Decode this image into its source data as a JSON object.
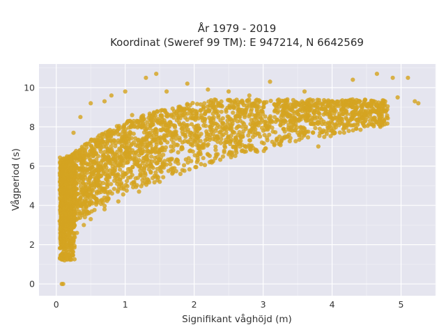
{
  "chart_data": {
    "type": "scatter",
    "title_lines": [
      "År 1979 - 2019",
      "Koordinat (Sweref 99 TM): E 947214, N 6642569"
    ],
    "xlabel": "Signifikant våghöjd (m)",
    "ylabel": "Vågperiod (s)",
    "xlim": [
      -0.25,
      5.5
    ],
    "ylim": [
      -0.6,
      11.2
    ],
    "x_ticks": [
      0,
      1,
      2,
      3,
      4,
      5
    ],
    "x_tick_labels": [
      "0",
      "1",
      "2",
      "3",
      "4",
      "5"
    ],
    "y_ticks": [
      0,
      2,
      4,
      6,
      8,
      10
    ],
    "y_tick_labels": [
      "0",
      "2",
      "4",
      "6",
      "8",
      "10"
    ],
    "grid": true,
    "legend": "none",
    "marker_color": "#D4A421",
    "plot_background": "#E5E5EF",
    "series": [
      {
        "points": [
          [
            0.08,
            0.0
          ],
          [
            0.1,
            0.0
          ],
          [
            0.09,
            1.3
          ],
          [
            0.12,
            1.2
          ],
          [
            0.15,
            1.5
          ],
          [
            0.1,
            2.0
          ],
          [
            0.07,
            2.5
          ],
          [
            0.08,
            3.2
          ],
          [
            0.06,
            4.0
          ],
          [
            0.08,
            5.3
          ],
          [
            0.1,
            6.0
          ],
          [
            0.12,
            4.8
          ],
          [
            0.2,
            2.0
          ],
          [
            0.25,
            2.3
          ],
          [
            0.3,
            2.6
          ],
          [
            0.4,
            3.0
          ],
          [
            0.5,
            3.3
          ],
          [
            0.7,
            3.8
          ],
          [
            0.9,
            4.2
          ],
          [
            1.2,
            4.7
          ],
          [
            1.5,
            5.2
          ],
          [
            1.8,
            5.6
          ],
          [
            2.1,
            6.1
          ],
          [
            2.5,
            6.6
          ],
          [
            2.8,
            7.0
          ],
          [
            3.2,
            7.4
          ],
          [
            3.5,
            7.7
          ],
          [
            4.0,
            8.2
          ],
          [
            0.25,
            7.7
          ],
          [
            0.35,
            8.5
          ],
          [
            0.5,
            9.2
          ],
          [
            0.7,
            9.3
          ],
          [
            0.8,
            9.6
          ],
          [
            1.0,
            9.8
          ],
          [
            1.3,
            10.5
          ],
          [
            1.45,
            10.7
          ],
          [
            1.6,
            9.8
          ],
          [
            1.9,
            10.2
          ],
          [
            2.2,
            9.9
          ],
          [
            2.5,
            9.8
          ],
          [
            2.8,
            9.6
          ],
          [
            3.1,
            10.3
          ],
          [
            3.6,
            9.8
          ],
          [
            4.3,
            10.4
          ],
          [
            4.65,
            10.7
          ],
          [
            4.88,
            10.5
          ],
          [
            5.1,
            10.5
          ],
          [
            4.95,
            9.5
          ],
          [
            5.2,
            9.3
          ],
          [
            5.25,
            9.2
          ],
          [
            4.5,
            9.1
          ],
          [
            4.1,
            8.5
          ],
          [
            4.7,
            8.0
          ],
          [
            3.8,
            7.0
          ],
          [
            0.3,
            6.5
          ],
          [
            0.6,
            7.0
          ],
          [
            1.0,
            6.5
          ],
          [
            1.4,
            7.8
          ],
          [
            2.0,
            8.0
          ],
          [
            2.5,
            8.5
          ],
          [
            3.0,
            9.0
          ],
          [
            3.5,
            9.2
          ],
          [
            0.5,
            5.0
          ],
          [
            0.9,
            5.5
          ],
          [
            1.7,
            7.0
          ],
          [
            2.3,
            7.5
          ],
          [
            2.9,
            8.1
          ],
          [
            3.9,
            8.7
          ],
          [
            4.4,
            9.3
          ],
          [
            1.1,
            8.6
          ]
        ]
      }
    ]
  }
}
